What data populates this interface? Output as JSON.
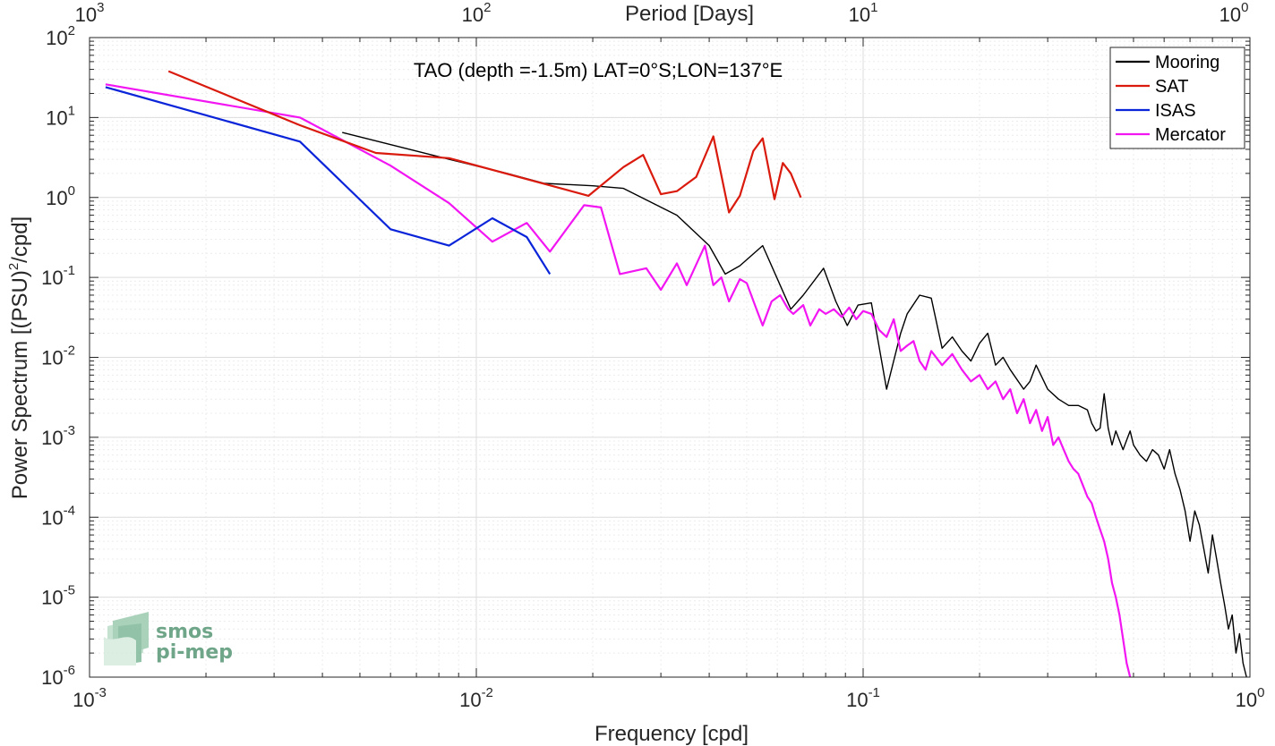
{
  "chart_data": {
    "type": "line",
    "title": "TAO (depth =-1.5m) LAT=0°S;LON=137°E",
    "xlabel": "Frequency [cpd]",
    "ylabel": "Power Spectrum [(PSU)",
    "ylabel_sup": "2",
    "ylabel_tail": "/cpd]",
    "top_xlabel": "Period [Days]",
    "x_scale": "log",
    "y_scale": "log",
    "xlim": [
      0.001,
      1
    ],
    "ylim": [
      1e-06,
      100
    ],
    "grid": true,
    "legend_position": "top-right",
    "x_ticks": [
      {
        "base": "10",
        "exp": "-3",
        "value": 0.001
      },
      {
        "base": "10",
        "exp": "-2",
        "value": 0.01
      },
      {
        "base": "10",
        "exp": "-1",
        "value": 0.1
      },
      {
        "base": "10",
        "exp": "0",
        "value": 1
      }
    ],
    "y_ticks": [
      {
        "base": "10",
        "exp": "-6",
        "value": 1e-06
      },
      {
        "base": "10",
        "exp": "-5",
        "value": 1e-05
      },
      {
        "base": "10",
        "exp": "-4",
        "value": 0.0001
      },
      {
        "base": "10",
        "exp": "-3",
        "value": 0.001
      },
      {
        "base": "10",
        "exp": "-2",
        "value": 0.01
      },
      {
        "base": "10",
        "exp": "-1",
        "value": 0.1
      },
      {
        "base": "10",
        "exp": "0",
        "value": 1
      },
      {
        "base": "10",
        "exp": "1",
        "value": 10
      },
      {
        "base": "10",
        "exp": "2",
        "value": 100
      }
    ],
    "top_ticks": [
      {
        "base": "10",
        "exp": "3",
        "value": 0.001
      },
      {
        "base": "10",
        "exp": "2",
        "value": 0.01
      },
      {
        "base": "10",
        "exp": "1",
        "value": 0.1
      },
      {
        "base": "10",
        "exp": "0",
        "value": 1
      }
    ],
    "series": [
      {
        "name": "Mooring",
        "color": "#000000",
        "x": [
          0.0045,
          0.0085,
          0.012,
          0.015,
          0.02,
          0.024,
          0.033,
          0.04,
          0.044,
          0.048,
          0.055,
          0.061,
          0.065,
          0.07,
          0.079,
          0.085,
          0.091,
          0.097,
          0.105,
          0.115,
          0.125,
          0.13,
          0.14,
          0.15,
          0.16,
          0.17,
          0.18,
          0.19,
          0.2,
          0.21,
          0.22,
          0.23,
          0.24,
          0.26,
          0.27,
          0.28,
          0.3,
          0.32,
          0.34,
          0.36,
          0.38,
          0.39,
          0.4,
          0.41,
          0.42,
          0.43,
          0.44,
          0.45,
          0.47,
          0.49,
          0.5,
          0.52,
          0.54,
          0.56,
          0.58,
          0.6,
          0.62,
          0.64,
          0.66,
          0.68,
          0.7,
          0.72,
          0.74,
          0.76,
          0.78,
          0.8,
          0.82,
          0.84,
          0.86,
          0.88,
          0.9,
          0.92,
          0.94,
          0.96,
          0.98
        ],
        "y": [
          6.5,
          3.0,
          2.0,
          1.5,
          1.4,
          1.3,
          0.6,
          0.25,
          0.11,
          0.14,
          0.25,
          0.08,
          0.04,
          0.06,
          0.13,
          0.05,
          0.025,
          0.045,
          0.048,
          0.004,
          0.02,
          0.035,
          0.06,
          0.055,
          0.013,
          0.018,
          0.012,
          0.009,
          0.015,
          0.02,
          0.008,
          0.01,
          0.007,
          0.004,
          0.005,
          0.008,
          0.004,
          0.003,
          0.0025,
          0.0025,
          0.0022,
          0.0015,
          0.0012,
          0.0013,
          0.0035,
          0.0013,
          0.0008,
          0.0012,
          0.0007,
          0.0012,
          0.0008,
          0.0006,
          0.0005,
          0.0007,
          0.0006,
          0.0004,
          0.0007,
          0.00035,
          0.00022,
          0.00012,
          5e-05,
          0.00012,
          8e-05,
          4e-05,
          2e-05,
          6e-05,
          3e-05,
          1.5e-05,
          8e-06,
          4e-06,
          6e-06,
          2e-06,
          3.5e-06,
          1.5e-06,
          1e-06
        ]
      },
      {
        "name": "SAT",
        "color": "#d91a0d",
        "x": [
          0.0016,
          0.0035,
          0.0055,
          0.0085,
          0.0195,
          0.024,
          0.027,
          0.03,
          0.033,
          0.037,
          0.041,
          0.045,
          0.048,
          0.052,
          0.055,
          0.059,
          0.062,
          0.065,
          0.069
        ],
        "y": [
          38,
          8,
          3.6,
          3.1,
          1.05,
          2.4,
          3.4,
          1.1,
          1.2,
          1.8,
          5.8,
          0.65,
          1.05,
          3.8,
          5.5,
          0.95,
          2.7,
          2.0,
          1.0
        ]
      },
      {
        "name": "ISAS",
        "color": "#0a24d9",
        "x": [
          0.0011,
          0.0035,
          0.006,
          0.0085,
          0.011,
          0.0135,
          0.0155
        ],
        "y": [
          24,
          5,
          0.4,
          0.25,
          0.55,
          0.32,
          0.11
        ]
      },
      {
        "name": "Mercator",
        "color": "#f216f2",
        "x": [
          0.0011,
          0.0035,
          0.006,
          0.0085,
          0.011,
          0.0135,
          0.0155,
          0.019,
          0.021,
          0.0235,
          0.0275,
          0.03,
          0.033,
          0.035,
          0.039,
          0.041,
          0.043,
          0.045,
          0.048,
          0.05,
          0.053,
          0.055,
          0.058,
          0.061,
          0.064,
          0.066,
          0.07,
          0.073,
          0.077,
          0.08,
          0.084,
          0.088,
          0.092,
          0.096,
          0.1,
          0.105,
          0.11,
          0.115,
          0.12,
          0.125,
          0.13,
          0.135,
          0.14,
          0.145,
          0.15,
          0.16,
          0.17,
          0.18,
          0.19,
          0.2,
          0.21,
          0.22,
          0.23,
          0.24,
          0.25,
          0.26,
          0.27,
          0.28,
          0.29,
          0.3,
          0.31,
          0.32,
          0.33,
          0.34,
          0.35,
          0.36,
          0.37,
          0.38,
          0.39,
          0.4,
          0.41,
          0.42,
          0.43,
          0.44,
          0.45,
          0.46,
          0.47,
          0.48,
          0.49
        ],
        "y": [
          26,
          10,
          2.5,
          0.85,
          0.28,
          0.48,
          0.21,
          0.8,
          0.75,
          0.11,
          0.13,
          0.07,
          0.15,
          0.08,
          0.25,
          0.08,
          0.1,
          0.05,
          0.095,
          0.085,
          0.04,
          0.025,
          0.05,
          0.06,
          0.04,
          0.035,
          0.045,
          0.025,
          0.04,
          0.035,
          0.04,
          0.032,
          0.042,
          0.03,
          0.038,
          0.035,
          0.022,
          0.018,
          0.03,
          0.012,
          0.014,
          0.016,
          0.009,
          0.007,
          0.012,
          0.008,
          0.011,
          0.007,
          0.005,
          0.006,
          0.004,
          0.005,
          0.003,
          0.004,
          0.002,
          0.003,
          0.0015,
          0.0022,
          0.0012,
          0.0018,
          0.0008,
          0.001,
          0.0007,
          0.0005,
          0.0004,
          0.00035,
          0.00025,
          0.00018,
          0.00015,
          0.0001,
          7e-05,
          5e-05,
          3e-05,
          1.5e-05,
          1e-05,
          6e-06,
          3e-06,
          1.5e-06,
          1e-06
        ]
      }
    ]
  },
  "logo": {
    "line1": "smos",
    "line2": "pi-mep"
  }
}
